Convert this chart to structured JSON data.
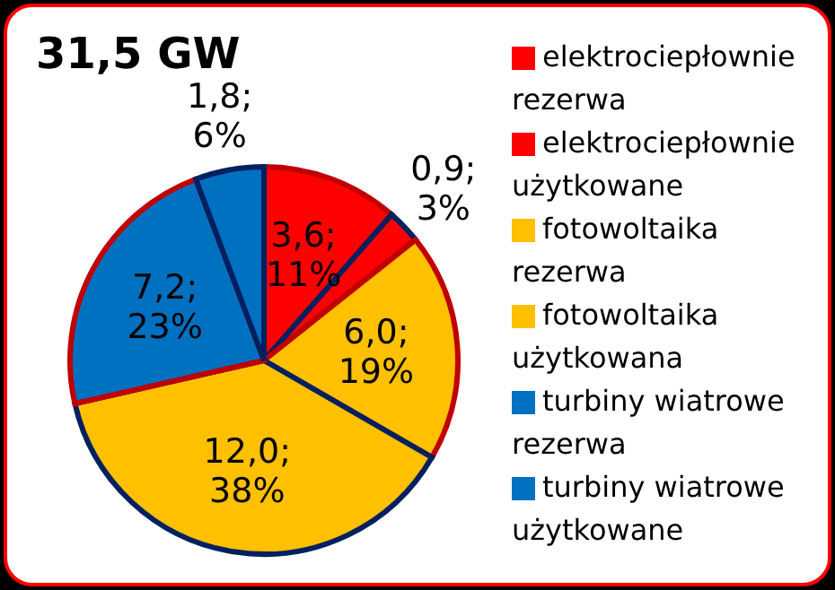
{
  "chart_data": {
    "type": "pie",
    "title": "31,5 GW",
    "categories": [
      "elektrociepłownie rezerwa",
      "elektrociepłownie użytkowane",
      "fotowoltaika rezerwa",
      "fotowoltaika użytkowana",
      "turbiny wiatrowe rezerwa",
      "turbiny wiatrowe użytkowane"
    ],
    "values": [
      3.6,
      0.9,
      6.0,
      12.0,
      7.2,
      1.8
    ],
    "colors": [
      "#ff0000",
      "#ff0000",
      "#ffc000",
      "#ffc000",
      "#0070c0",
      "#0070c0"
    ],
    "value_labels": [
      "3,6;\n11%",
      "0,9;\n3%",
      "6,0;\n19%",
      "12,0;\n38%",
      "7,2;\n23%",
      "1,8;\n6%"
    ],
    "legend": "right"
  }
}
